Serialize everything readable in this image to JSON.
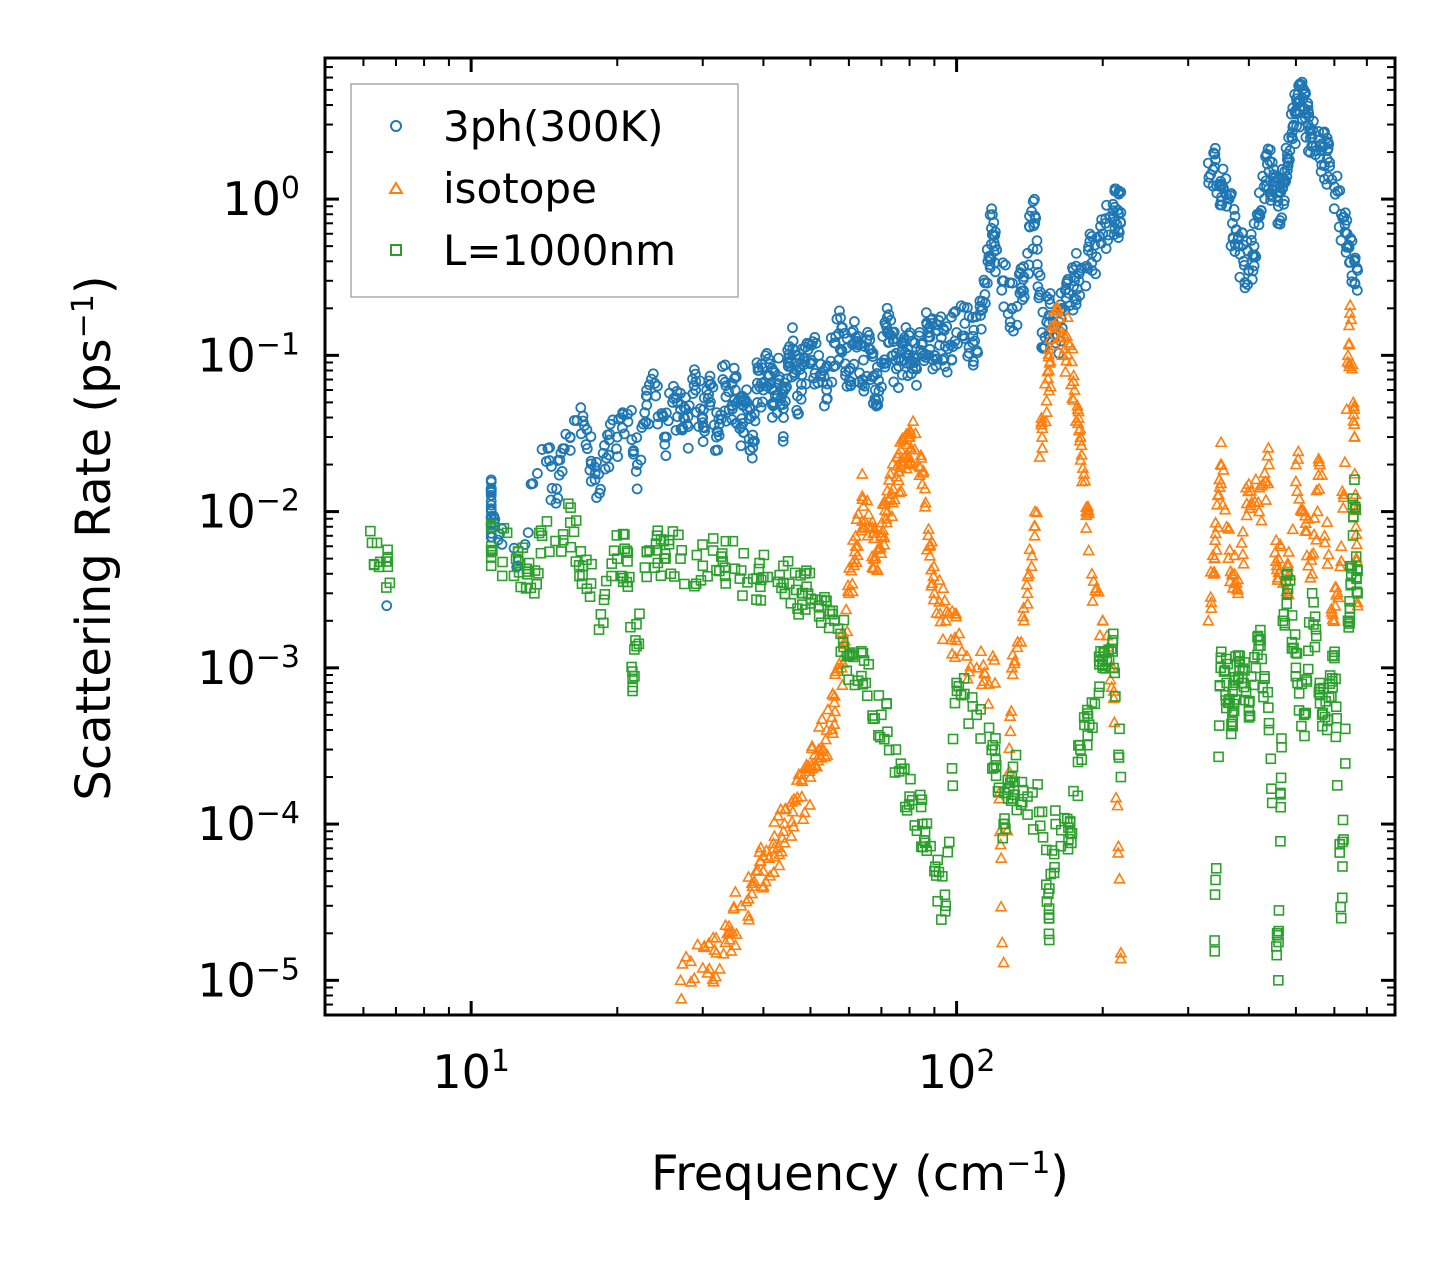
{
  "chart_data": {
    "type": "scatter",
    "title": "",
    "xlabel": "Frequency (cm",
    "xlabel_sup": "−1",
    "xlabel_tail": ")",
    "ylabel": "Scattering Rate (ps",
    "ylabel_sup": "−1",
    "ylabel_tail": ")",
    "xscale": "log",
    "yscale": "log",
    "xlim": [
      5,
      800
    ],
    "ylim": [
      6e-06,
      8
    ],
    "x_ticks": [
      {
        "value": 10,
        "base": "10",
        "exp": "1"
      },
      {
        "value": 100,
        "base": "10",
        "exp": "2"
      }
    ],
    "y_ticks": [
      {
        "value": 1,
        "base": "10",
        "exp": "0"
      },
      {
        "value": 0.1,
        "base": "10",
        "exp": "−1"
      },
      {
        "value": 0.01,
        "base": "10",
        "exp": "−2"
      },
      {
        "value": 0.001,
        "base": "10",
        "exp": "−3"
      },
      {
        "value": 0.0001,
        "base": "10",
        "exp": "−4"
      },
      {
        "value": 1e-05,
        "base": "10",
        "exp": "−5"
      }
    ],
    "legend_position": "top-left",
    "series": [
      {
        "name": "3ph(300K)",
        "marker": "circle",
        "color": "#1f77b4",
        "points": [
          [
            6.7,
            0.0025
          ],
          [
            11,
            0.0135
          ],
          [
            11,
            0.011
          ],
          [
            11,
            0.0085
          ],
          [
            12.5,
            0.0045
          ],
          [
            14,
            0.025
          ],
          [
            15,
            0.014
          ],
          [
            16,
            0.03
          ],
          [
            17,
            0.038
          ],
          [
            18,
            0.016
          ],
          [
            19,
            0.022
          ],
          [
            20,
            0.03
          ],
          [
            21,
            0.042
          ],
          [
            22,
            0.02
          ],
          [
            23,
            0.048
          ],
          [
            24,
            0.055
          ],
          [
            25,
            0.03
          ],
          [
            26,
            0.05
          ],
          [
            27,
            0.045
          ],
          [
            28,
            0.035
          ],
          [
            29,
            0.06
          ],
          [
            30,
            0.04
          ],
          [
            31,
            0.065
          ],
          [
            32,
            0.03
          ],
          [
            33,
            0.07
          ],
          [
            34,
            0.045
          ],
          [
            35,
            0.06
          ],
          [
            36,
            0.035
          ],
          [
            37,
            0.05
          ],
          [
            38,
            0.028
          ],
          [
            39,
            0.08
          ],
          [
            40,
            0.06
          ],
          [
            41,
            0.095
          ],
          [
            42,
            0.05
          ],
          [
            43,
            0.07
          ],
          [
            44,
            0.04
          ],
          [
            45,
            0.085
          ],
          [
            46,
            0.11
          ],
          [
            47,
            0.055
          ],
          [
            48,
            0.075
          ],
          [
            50,
            0.09
          ],
          [
            52,
            0.1
          ],
          [
            54,
            0.06
          ],
          [
            56,
            0.12
          ],
          [
            58,
            0.15
          ],
          [
            60,
            0.08
          ],
          [
            62,
            0.13
          ],
          [
            64,
            0.07
          ],
          [
            66,
            0.11
          ],
          [
            68,
            0.06
          ],
          [
            70,
            0.09
          ],
          [
            72,
            0.14
          ],
          [
            74,
            0.1
          ],
          [
            76,
            0.085
          ],
          [
            78,
            0.12
          ],
          [
            80,
            0.1
          ],
          [
            82,
            0.09
          ],
          [
            85,
            0.12
          ],
          [
            88,
            0.15
          ],
          [
            90,
            0.1
          ],
          [
            93,
            0.13
          ],
          [
            96,
            0.11
          ],
          [
            100,
            0.14
          ],
          [
            104,
            0.16
          ],
          [
            108,
            0.12
          ],
          [
            112,
            0.18
          ],
          [
            116,
            0.4
          ],
          [
            118,
            0.65
          ],
          [
            120,
            0.5
          ],
          [
            125,
            0.3
          ],
          [
            130,
            0.2
          ],
          [
            135,
            0.25
          ],
          [
            140,
            0.45
          ],
          [
            145,
            0.78
          ],
          [
            150,
            0.14
          ],
          [
            155,
            0.18
          ],
          [
            160,
            0.12
          ],
          [
            165,
            0.2
          ],
          [
            170,
            0.25
          ],
          [
            175,
            0.3
          ],
          [
            180,
            0.35
          ],
          [
            190,
            0.45
          ],
          [
            200,
            0.6
          ],
          [
            210,
            0.75
          ],
          [
            215,
            0.85
          ],
          [
            218,
            0.82
          ],
          [
            330,
            1.7
          ],
          [
            340,
            1.6
          ],
          [
            350,
            1.3
          ],
          [
            360,
            0.9
          ],
          [
            370,
            0.7
          ],
          [
            380,
            0.5
          ],
          [
            390,
            0.4
          ],
          [
            400,
            0.35
          ],
          [
            410,
            0.5
          ],
          [
            420,
            0.8
          ],
          [
            430,
            1.2
          ],
          [
            440,
            1.5
          ],
          [
            450,
            1.3
          ],
          [
            460,
            0.9
          ],
          [
            470,
            1.2
          ],
          [
            480,
            1.8
          ],
          [
            490,
            2.5
          ],
          [
            500,
            3.5
          ],
          [
            510,
            4.3
          ],
          [
            520,
            3.8
          ],
          [
            530,
            3.0
          ],
          [
            540,
            2.5
          ],
          [
            560,
            2.2
          ],
          [
            580,
            1.8
          ],
          [
            600,
            1.2
          ],
          [
            620,
            0.8
          ],
          [
            640,
            0.5
          ],
          [
            660,
            0.4
          ],
          [
            670,
            0.35
          ]
        ]
      },
      {
        "name": "isotope",
        "marker": "triangle",
        "color": "#ff7f0e",
        "points": [
          [
            27,
            1e-05
          ],
          [
            30,
            1.2e-05
          ],
          [
            32,
            1.5e-05
          ],
          [
            34,
            2e-05
          ],
          [
            36,
            3e-05
          ],
          [
            38,
            4e-05
          ],
          [
            40,
            5e-05
          ],
          [
            42,
            7e-05
          ],
          [
            44,
            9e-05
          ],
          [
            46,
            0.00012
          ],
          [
            48,
            0.00015
          ],
          [
            50,
            0.0002
          ],
          [
            52,
            0.0003
          ],
          [
            54,
            0.0004
          ],
          [
            56,
            0.0006
          ],
          [
            58,
            0.001
          ],
          [
            60,
            0.003
          ],
          [
            62,
            0.006
          ],
          [
            64,
            0.012
          ],
          [
            66,
            0.008
          ],
          [
            68,
            0.005
          ],
          [
            70,
            0.007
          ],
          [
            72,
            0.01
          ],
          [
            74,
            0.014
          ],
          [
            76,
            0.018
          ],
          [
            78,
            0.022
          ],
          [
            80,
            0.03
          ],
          [
            82,
            0.025
          ],
          [
            85,
            0.015
          ],
          [
            88,
            0.006
          ],
          [
            90,
            0.003
          ],
          [
            95,
            0.002
          ],
          [
            100,
            0.0015
          ],
          [
            110,
            0.001
          ],
          [
            120,
            0.0008
          ],
          [
            125,
            1.3e-05
          ],
          [
            130,
            0.001
          ],
          [
            140,
            0.003
          ],
          [
            145,
            0.01
          ],
          [
            150,
            0.03
          ],
          [
            155,
            0.08
          ],
          [
            160,
            0.15
          ],
          [
            165,
            0.1
          ],
          [
            170,
            0.12
          ],
          [
            175,
            0.06
          ],
          [
            180,
            0.03
          ],
          [
            185,
            0.01
          ],
          [
            190,
            0.004
          ],
          [
            200,
            0.002
          ],
          [
            210,
            0.001
          ],
          [
            218,
            1.5e-05
          ],
          [
            330,
            0.002
          ],
          [
            340,
            0.005
          ],
          [
            350,
            0.02
          ],
          [
            360,
            0.008
          ],
          [
            370,
            0.004
          ],
          [
            380,
            0.003
          ],
          [
            400,
            0.015
          ],
          [
            420,
            0.01
          ],
          [
            440,
            0.02
          ],
          [
            460,
            0.005
          ],
          [
            480,
            0.003
          ],
          [
            500,
            0.02
          ],
          [
            520,
            0.01
          ],
          [
            540,
            0.004
          ],
          [
            560,
            0.02
          ],
          [
            600,
            0.002
          ],
          [
            620,
            0.006
          ],
          [
            640,
            0.1
          ],
          [
            650,
            0.17
          ],
          [
            660,
            0.03
          ],
          [
            670,
            0.0025
          ]
        ]
      },
      {
        "name": "L=1000nm",
        "marker": "square",
        "color": "#2ca02c",
        "points": [
          [
            6.2,
            0.0075
          ],
          [
            6.8,
            0.0035
          ],
          [
            11,
            0.0055
          ],
          [
            11,
            0.006
          ],
          [
            12.5,
            0.0048
          ],
          [
            13.5,
            0.003
          ],
          [
            14,
            0.007
          ],
          [
            16,
            0.0085
          ],
          [
            17,
            0.0045
          ],
          [
            18.5,
            0.0022
          ],
          [
            20,
            0.005
          ],
          [
            21,
            0.0048
          ],
          [
            21.5,
            0.00085
          ],
          [
            23,
            0.0055
          ],
          [
            25,
            0.005
          ],
          [
            27,
            0.005
          ],
          [
            30,
            0.0045
          ],
          [
            33,
            0.0048
          ],
          [
            36,
            0.0042
          ],
          [
            40,
            0.0038
          ],
          [
            44,
            0.0035
          ],
          [
            48,
            0.003
          ],
          [
            52,
            0.0025
          ],
          [
            56,
            0.002
          ],
          [
            60,
            0.0012
          ],
          [
            65,
            0.0008
          ],
          [
            70,
            0.0005
          ],
          [
            75,
            0.0003
          ],
          [
            80,
            0.00015
          ],
          [
            85,
            0.0001
          ],
          [
            90,
            5e-05
          ],
          [
            95,
            3e-05
          ],
          [
            100,
            0.0008
          ],
          [
            110,
            0.0005
          ],
          [
            120,
            0.0003
          ],
          [
            125,
            0.0001
          ],
          [
            130,
            0.0002
          ],
          [
            140,
            0.00015
          ],
          [
            150,
            0.00012
          ],
          [
            155,
            2.5e-05
          ],
          [
            160,
            0.0001
          ],
          [
            170,
            8e-05
          ],
          [
            180,
            0.0003
          ],
          [
            190,
            0.0006
          ],
          [
            200,
            0.001
          ],
          [
            210,
            0.0015
          ],
          [
            218,
            0.0002
          ],
          [
            340,
            1.8e-05
          ],
          [
            350,
            0.001
          ],
          [
            360,
            0.0008
          ],
          [
            370,
            0.0005
          ],
          [
            380,
            0.0012
          ],
          [
            390,
            0.0008
          ],
          [
            400,
            0.0006
          ],
          [
            420,
            0.0015
          ],
          [
            440,
            0.0004
          ],
          [
            460,
            1e-05
          ],
          [
            470,
            0.002
          ],
          [
            480,
            0.004
          ],
          [
            500,
            0.001
          ],
          [
            520,
            0.0005
          ],
          [
            540,
            0.003
          ],
          [
            560,
            0.0008
          ],
          [
            580,
            0.0004
          ],
          [
            600,
            0.0012
          ],
          [
            620,
            2.5e-05
          ],
          [
            640,
            0.002
          ],
          [
            650,
            0.004
          ],
          [
            660,
            0.016
          ],
          [
            670,
            0.003
          ]
        ]
      }
    ]
  }
}
